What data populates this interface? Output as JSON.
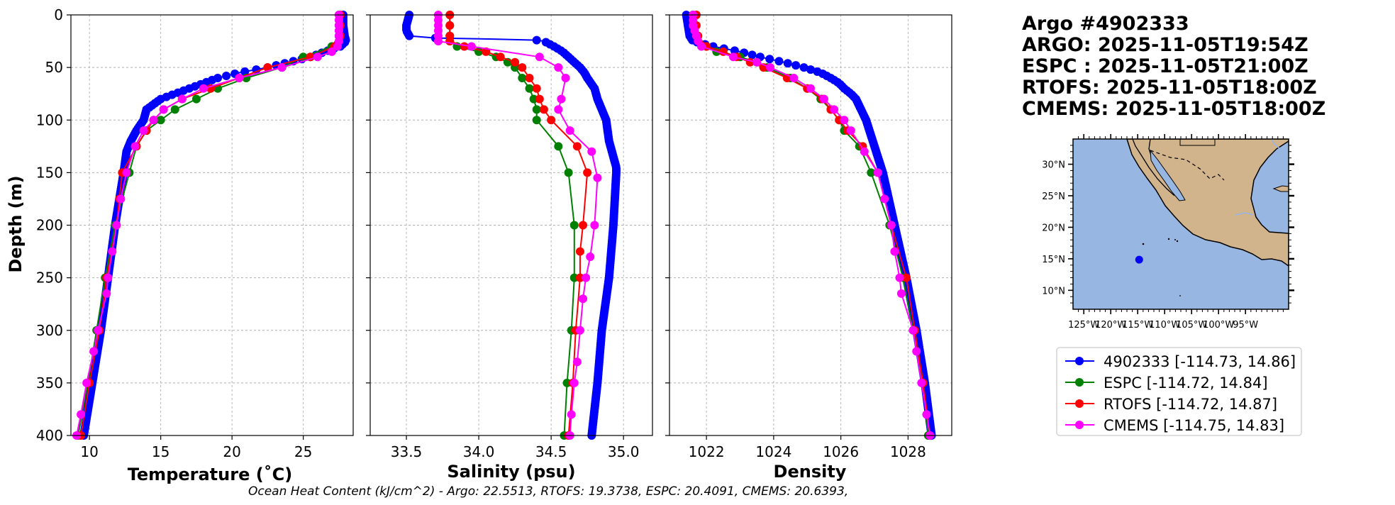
{
  "title": {
    "lines": [
      "Argo #4902333",
      "ARGO: 2025-11-05T19:54Z",
      "ESPC : 2025-11-05T21:00Z",
      "RTOFS: 2025-11-05T18:00Z",
      "CMEMS: 2025-11-05T18:00Z"
    ]
  },
  "footer": "Ocean Heat Content (kJ/cm^2) - Argo: 22.5513,  RTOFS: 19.3738,  ESPC: 20.4091,  CMEMS: 20.6393,",
  "colors": {
    "argo": "#0000ff",
    "espc": "#008000",
    "rtofs": "#ff0000",
    "cmems": "#ff00ff",
    "ocean": "#98b6e2",
    "land": "#d2b48c"
  },
  "legend": [
    {
      "label": "4902333 [-114.73, 14.86]",
      "color": "#0000ff"
    },
    {
      "label": "ESPC [-114.72, 14.84]",
      "color": "#008000"
    },
    {
      "label": "RTOFS [-114.72, 14.87]",
      "color": "#ff0000"
    },
    {
      "label": "CMEMS [-114.75, 14.83]",
      "color": "#ff00ff"
    }
  ],
  "map": {
    "lon_range": [
      -127,
      -87
    ],
    "lat_range": [
      7,
      34
    ],
    "lon_ticks": [
      -125,
      -120,
      -115,
      -110,
      -105,
      -100,
      -95
    ],
    "lon_tick_labels": [
      "125°W",
      "120°W",
      "115°W",
      "110°W",
      "105°W",
      "100°W",
      "95°W"
    ],
    "lat_ticks": [
      10,
      15,
      20,
      25,
      30
    ],
    "lat_tick_labels": [
      "10°N",
      "15°N",
      "20°N",
      "25°N",
      "30°N"
    ],
    "float_position": {
      "lon": -114.73,
      "lat": 14.86
    }
  },
  "chart_data": [
    {
      "type": "line",
      "title": "",
      "xlabel": "Temperature (˚C)",
      "ylabel": "Depth (m)",
      "xlim": [
        8.7,
        28.5
      ],
      "ylim": [
        400,
        0
      ],
      "xticks": [
        10,
        15,
        20,
        25
      ],
      "yticks": [
        0,
        50,
        100,
        150,
        200,
        250,
        300,
        350,
        400
      ],
      "grid": true,
      "series": [
        {
          "name": "4902333",
          "color": "#0000ff",
          "dense": true,
          "depth": [
            0,
            10,
            20,
            25,
            30,
            35,
            40,
            45,
            50,
            55,
            60,
            65,
            70,
            75,
            80,
            90,
            100,
            110,
            120,
            130,
            150,
            175,
            200,
            250,
            300,
            350,
            400
          ],
          "values": [
            27.8,
            27.8,
            27.9,
            28.0,
            27.6,
            26.5,
            25.5,
            24.0,
            22.5,
            20.5,
            19.0,
            18.0,
            17.0,
            16.0,
            15.0,
            14.0,
            13.8,
            13.3,
            12.9,
            12.6,
            12.4,
            12.1,
            11.8,
            11.3,
            10.8,
            10.2,
            9.6
          ]
        },
        {
          "name": "ESPC",
          "color": "#008000",
          "dense": false,
          "depth": [
            0,
            10,
            20,
            30,
            40,
            50,
            60,
            70,
            80,
            90,
            100,
            110,
            125,
            150,
            200,
            250,
            300,
            350,
            400
          ],
          "values": [
            27.5,
            27.5,
            27.5,
            27.0,
            25.0,
            23.5,
            21.0,
            19.0,
            17.5,
            16.0,
            15.0,
            14.0,
            13.3,
            12.8,
            11.8,
            11.1,
            10.5,
            9.9,
            9.2
          ]
        },
        {
          "name": "RTOFS",
          "color": "#ff0000",
          "dense": false,
          "depth": [
            0,
            10,
            20,
            30,
            40,
            50,
            60,
            70,
            80,
            90,
            100,
            110,
            125,
            150,
            175,
            200,
            250,
            300,
            350,
            400
          ],
          "values": [
            27.6,
            27.6,
            27.6,
            27.2,
            25.5,
            22.5,
            20.5,
            18.5,
            16.5,
            15.2,
            14.5,
            14.0,
            13.3,
            12.3,
            12.1,
            11.9,
            11.2,
            10.7,
            10.0,
            9.4
          ]
        },
        {
          "name": "CMEMS",
          "color": "#ff00ff",
          "dense": false,
          "depth": [
            0,
            5,
            10,
            15,
            20,
            25,
            30,
            35,
            40,
            50,
            60,
            70,
            80,
            90,
            100,
            110,
            125,
            150,
            175,
            200,
            225,
            250,
            265,
            300,
            320,
            350,
            380,
            400
          ],
          "values": [
            27.5,
            27.5,
            27.5,
            27.5,
            27.5,
            27.5,
            27.4,
            27.0,
            26.0,
            23.5,
            20.5,
            18.0,
            16.5,
            15.2,
            14.5,
            13.8,
            13.2,
            12.6,
            12.2,
            11.9,
            11.6,
            11.3,
            11.2,
            10.6,
            10.3,
            9.8,
            9.4,
            9.1
          ]
        }
      ]
    },
    {
      "type": "line",
      "title": "",
      "xlabel": "Salinity (psu)",
      "ylabel": "",
      "xlim": [
        33.25,
        35.2
      ],
      "ylim": [
        400,
        0
      ],
      "xticks": [
        33.5,
        34.0,
        34.5,
        35.0
      ],
      "xtick_labels": [
        "33.5",
        "34.0",
        "34.5",
        "35.0"
      ],
      "yticks": [
        0,
        50,
        100,
        150,
        200,
        250,
        300,
        350,
        400
      ],
      "grid": true,
      "series": [
        {
          "name": "4902333",
          "color": "#0000ff",
          "dense": true,
          "depth": [
            0,
            5,
            10,
            15,
            20,
            22,
            23,
            24,
            25,
            30,
            35,
            40,
            45,
            50,
            55,
            60,
            70,
            80,
            90,
            100,
            120,
            145,
            150,
            175,
            200,
            250,
            300,
            350,
            400
          ],
          "values": [
            33.52,
            33.51,
            33.5,
            33.5,
            33.52,
            33.7,
            34.1,
            34.4,
            34.45,
            34.52,
            34.58,
            34.62,
            34.66,
            34.7,
            34.73,
            34.75,
            34.8,
            34.82,
            34.85,
            34.88,
            34.9,
            34.95,
            34.95,
            34.94,
            34.93,
            34.9,
            34.85,
            34.82,
            34.78
          ]
        },
        {
          "name": "ESPC",
          "color": "#008000",
          "dense": false,
          "depth": [
            0,
            10,
            20,
            25,
            30,
            35,
            40,
            45,
            50,
            60,
            70,
            80,
            90,
            100,
            125,
            150,
            200,
            250,
            300,
            350,
            400
          ],
          "values": [
            33.8,
            33.8,
            33.8,
            33.8,
            33.85,
            34.0,
            34.12,
            34.2,
            34.25,
            34.3,
            34.35,
            34.38,
            34.4,
            34.4,
            34.55,
            34.62,
            34.66,
            34.66,
            34.64,
            34.61,
            34.59
          ]
        },
        {
          "name": "RTOFS",
          "color": "#ff0000",
          "dense": false,
          "depth": [
            0,
            10,
            20,
            25,
            30,
            35,
            40,
            45,
            50,
            60,
            70,
            80,
            90,
            100,
            125,
            150,
            200,
            225,
            250,
            300,
            350,
            400
          ],
          "values": [
            33.8,
            33.8,
            33.8,
            33.8,
            33.9,
            34.05,
            34.15,
            34.25,
            34.3,
            34.35,
            34.4,
            34.42,
            34.45,
            34.5,
            34.68,
            34.75,
            34.72,
            34.7,
            34.7,
            34.67,
            34.65,
            34.62
          ]
        },
        {
          "name": "CMEMS",
          "color": "#ff00ff",
          "dense": false,
          "depth": [
            0,
            5,
            10,
            15,
            20,
            25,
            30,
            40,
            50,
            60,
            80,
            90,
            110,
            130,
            155,
            200,
            230,
            250,
            270,
            300,
            330,
            350,
            380,
            400
          ],
          "values": [
            33.72,
            33.72,
            33.72,
            33.72,
            33.72,
            33.72,
            33.95,
            34.42,
            34.55,
            34.6,
            34.57,
            34.55,
            34.63,
            34.78,
            34.82,
            34.8,
            34.77,
            34.74,
            34.72,
            34.7,
            34.68,
            34.66,
            34.64,
            34.63
          ]
        }
      ]
    },
    {
      "type": "line",
      "title": "",
      "xlabel": "Density",
      "ylabel": "",
      "xlim": [
        1020.9,
        1029.3
      ],
      "ylim": [
        400,
        0
      ],
      "xticks": [
        1022,
        1024,
        1026,
        1028
      ],
      "yticks": [
        0,
        50,
        100,
        150,
        200,
        250,
        300,
        350,
        400
      ],
      "grid": true,
      "series": [
        {
          "name": "4902333",
          "color": "#0000ff",
          "dense": true,
          "depth": [
            0,
            10,
            20,
            25,
            30,
            35,
            40,
            45,
            50,
            55,
            60,
            65,
            70,
            75,
            80,
            90,
            100,
            110,
            125,
            150,
            200,
            250,
            300,
            350,
            400
          ],
          "values": [
            1021.4,
            1021.45,
            1021.5,
            1021.6,
            1022.2,
            1023.0,
            1023.6,
            1024.3,
            1024.9,
            1025.4,
            1025.7,
            1025.95,
            1026.1,
            1026.3,
            1026.45,
            1026.6,
            1026.75,
            1026.85,
            1027.0,
            1027.25,
            1027.6,
            1027.95,
            1028.25,
            1028.5,
            1028.7
          ]
        },
        {
          "name": "ESPC",
          "color": "#008000",
          "dense": false,
          "depth": [
            0,
            10,
            20,
            30,
            35,
            40,
            45,
            50,
            60,
            70,
            80,
            90,
            100,
            110,
            125,
            150,
            200,
            250,
            300,
            350,
            400
          ],
          "values": [
            1021.6,
            1021.6,
            1021.7,
            1022.0,
            1022.3,
            1023.0,
            1023.5,
            1023.8,
            1024.5,
            1025.0,
            1025.4,
            1025.7,
            1025.95,
            1026.1,
            1026.55,
            1026.9,
            1027.45,
            1027.85,
            1028.15,
            1028.45,
            1028.6
          ]
        },
        {
          "name": "RTOFS",
          "color": "#ff0000",
          "dense": false,
          "depth": [
            0,
            10,
            20,
            30,
            35,
            40,
            45,
            50,
            60,
            70,
            80,
            90,
            100,
            110,
            125,
            150,
            200,
            250,
            300,
            350,
            400
          ],
          "values": [
            1021.7,
            1021.7,
            1021.75,
            1022.0,
            1022.5,
            1022.9,
            1023.3,
            1023.7,
            1024.4,
            1025.0,
            1025.45,
            1025.7,
            1025.95,
            1026.2,
            1026.65,
            1027.1,
            1027.5,
            1027.95,
            1028.2,
            1028.45,
            1028.65
          ]
        },
        {
          "name": "CMEMS",
          "color": "#ff00ff",
          "dense": false,
          "depth": [
            0,
            5,
            10,
            15,
            20,
            25,
            30,
            40,
            45,
            50,
            60,
            70,
            80,
            90,
            100,
            110,
            130,
            150,
            175,
            200,
            225,
            250,
            265,
            300,
            320,
            350,
            380,
            400
          ],
          "values": [
            1021.6,
            1021.6,
            1021.6,
            1021.65,
            1021.7,
            1021.75,
            1021.85,
            1022.8,
            1023.5,
            1023.9,
            1024.6,
            1025.1,
            1025.5,
            1025.8,
            1026.1,
            1026.3,
            1026.7,
            1027.1,
            1027.3,
            1027.5,
            1027.6,
            1027.75,
            1027.8,
            1028.15,
            1028.25,
            1028.4,
            1028.55,
            1028.65
          ]
        }
      ]
    }
  ]
}
